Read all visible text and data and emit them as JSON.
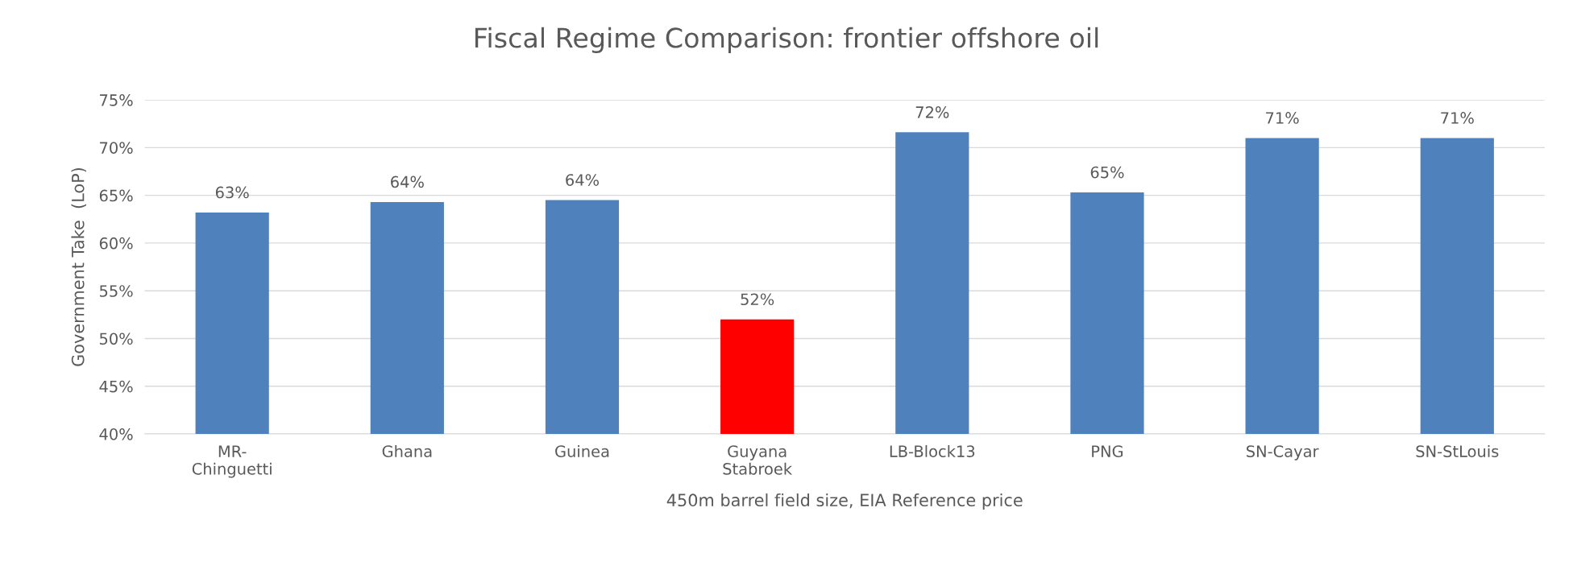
{
  "chart_data": {
    "type": "bar",
    "title": "Fiscal Regime Comparison: frontier offshore oil",
    "xlabel": "450m barrel field size, EIA Reference price",
    "ylabel": "Government Take  (LoP)",
    "categories": [
      "MR-\nChinguetti",
      "Ghana",
      "Guinea",
      "Guyana\nStabroek",
      "LB-Block13",
      "PNG",
      "SN-Cayar",
      "SN-StLouis"
    ],
    "values": [
      63.2,
      64.3,
      64.5,
      52.0,
      71.6,
      65.3,
      71.0,
      71.0
    ],
    "value_labels": [
      "63%",
      "64%",
      "64%",
      "52%",
      "72%",
      "65%",
      "71%",
      "71%"
    ],
    "colors": [
      "#4f81bd",
      "#4f81bd",
      "#4f81bd",
      "#ff0000",
      "#4f81bd",
      "#4f81bd",
      "#4f81bd",
      "#4f81bd"
    ],
    "ylim": [
      40,
      75
    ],
    "yticks": [
      {
        "value": 40,
        "label": "40%"
      },
      {
        "value": 45,
        "label": "45%"
      },
      {
        "value": 50,
        "label": "50%"
      },
      {
        "value": 55,
        "label": "55%"
      },
      {
        "value": 60,
        "label": "60%"
      },
      {
        "value": 65,
        "label": "65%"
      },
      {
        "value": 70,
        "label": "70%"
      },
      {
        "value": 75,
        "label": "75%"
      }
    ],
    "grid": "y"
  }
}
